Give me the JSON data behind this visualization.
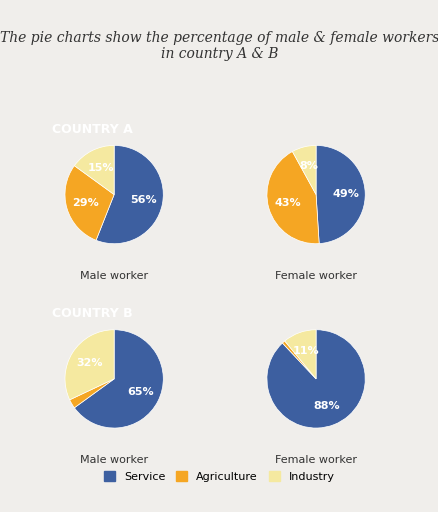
{
  "title": "The pie charts show the percentage of male & female workers\nin country A & B",
  "background_color": "#f0eeeb",
  "card_color": "#ffffff",
  "country_a_label": "COUNTRY A",
  "country_b_label": "COUNTRY B",
  "country_label_bg": "#6b6b6b",
  "country_label_fg": "#ffffff",
  "charts": {
    "country_a_male": {
      "values": [
        56,
        29,
        15
      ],
      "labels": [
        "56%",
        "29%",
        "15%"
      ],
      "colors": [
        "#3d5fa0",
        "#f5a623",
        "#f5e9a0"
      ],
      "subtitle": "Male worker"
    },
    "country_a_female": {
      "values": [
        49,
        43,
        8
      ],
      "labels": [
        "49%",
        "43%",
        "8%"
      ],
      "colors": [
        "#3d5fa0",
        "#f5a623",
        "#f5e9a0"
      ],
      "subtitle": "Female worker"
    },
    "country_b_male": {
      "values": [
        65,
        3,
        32
      ],
      "labels": [
        "65%",
        "",
        "32%"
      ],
      "colors": [
        "#3d5fa0",
        "#f5a623",
        "#f5e9a0"
      ],
      "subtitle": "Male worker"
    },
    "country_b_female": {
      "values": [
        88,
        1,
        11
      ],
      "labels": [
        "88%",
        "",
        "11%"
      ],
      "colors": [
        "#3d5fa0",
        "#f5a623",
        "#f5e9a0"
      ],
      "subtitle": "Female worker"
    }
  },
  "legend": [
    "Service",
    "Agriculture",
    "Industry"
  ],
  "legend_colors": [
    "#3d5fa0",
    "#f5a623",
    "#f5e9a0"
  ],
  "title_fontsize": 10,
  "subtitle_fontsize": 8,
  "pct_fontsize": 8
}
